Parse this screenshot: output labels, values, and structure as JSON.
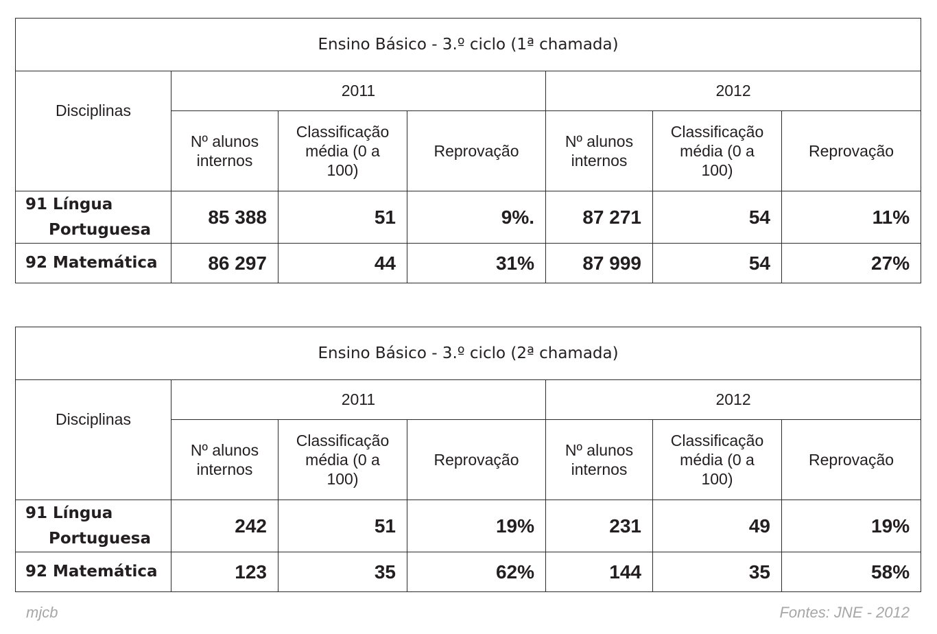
{
  "tables": [
    {
      "title": "Ensino Básico - 3.º ciclo (1ª chamada)",
      "disciplinas_label": "Disciplinas",
      "years": [
        "2011",
        "2012"
      ],
      "columns": [
        [
          "Nº alunos",
          "internos"
        ],
        [
          "Classificação",
          "média (0 a",
          "100)"
        ],
        [
          "Reprovação"
        ]
      ],
      "rows": [
        {
          "subject_line1": "91 Língua",
          "subject_line2": "Portuguesa",
          "values": [
            "85 388",
            "51",
            "9%.",
            "87 271",
            "54",
            "11%"
          ]
        },
        {
          "subject_line1": "92 Matemática",
          "subject_line2": "",
          "values": [
            "86 297",
            "44",
            "31%",
            "87 999",
            "54",
            "27%"
          ]
        }
      ]
    },
    {
      "title": "Ensino Básico - 3.º ciclo (2ª chamada)",
      "disciplinas_label": "Disciplinas",
      "years": [
        "2011",
        "2012"
      ],
      "columns": [
        [
          "Nº alunos",
          "internos"
        ],
        [
          "Classificação",
          "média (0 a",
          "100)"
        ],
        [
          "Reprovação"
        ]
      ],
      "rows": [
        {
          "subject_line1": "91 Língua",
          "subject_line2": "Portuguesa",
          "values": [
            "242",
            "51",
            "19%",
            "231",
            "49",
            "19%"
          ]
        },
        {
          "subject_line1": "92 Matemática",
          "subject_line2": "",
          "values": [
            "123",
            "35",
            "62%",
            "144",
            "35",
            "58%"
          ]
        }
      ]
    }
  ],
  "footer": {
    "author": "mjcb",
    "source": "Fontes: JNE - 2012"
  }
}
